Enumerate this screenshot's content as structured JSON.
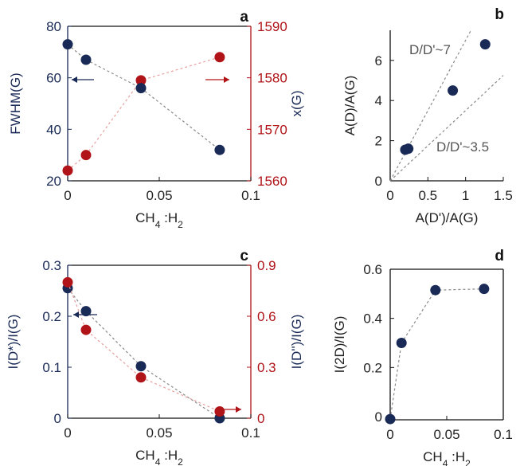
{
  "colors": {
    "navy": "#1a2a57",
    "red": "#b01418",
    "axis_left": "#1a2a57",
    "axis_right": "#b01418",
    "black": "#000000",
    "dash_light_red": "#e8a0a0",
    "dash_gray": "#888888"
  },
  "chart_data": [
    {
      "panel": "a",
      "type": "scatter",
      "xlabel": "CH4 :H2",
      "ylabel_left": "FWHM(G)",
      "ylabel_right": "x(G)",
      "xlim": [
        0,
        0.1
      ],
      "ylim_left": [
        20,
        80
      ],
      "ylim_right": [
        1560,
        1590
      ],
      "x_ticks": [
        "0",
        "0.05",
        "0.1"
      ],
      "y_ticks_left": [
        "20",
        "40",
        "60",
        "80"
      ],
      "y_ticks_right": [
        "1560",
        "1570",
        "1580",
        "1590"
      ],
      "series": [
        {
          "axis": "left",
          "color": "#1a2a57",
          "x": [
            0,
            0.01,
            0.04,
            0.083
          ],
          "y": [
            73,
            67,
            56,
            32
          ]
        },
        {
          "axis": "right",
          "color": "#b01418",
          "x": [
            0,
            0.01,
            0.04,
            0.083
          ],
          "y": [
            1562,
            1565,
            1579.5,
            1584
          ]
        }
      ]
    },
    {
      "panel": "b",
      "type": "scatter",
      "xlabel": "A(D')/A(G)",
      "ylabel": "A(D)/A(G)",
      "xlim": [
        0,
        1.5
      ],
      "ylim": [
        0,
        7.5
      ],
      "x_ticks": [
        "0",
        "0.5",
        "1",
        "1.5"
      ],
      "y_ticks": [
        "0",
        "2",
        "4",
        "6"
      ],
      "annotations": [
        "D/D'~7",
        "D/D'~3.5"
      ],
      "reference_lines": [
        7,
        3.5
      ],
      "series": [
        {
          "color": "#1a2a57",
          "x": [
            0.2,
            0.24,
            0.83,
            1.26
          ],
          "y": [
            1.55,
            1.6,
            4.5,
            6.8
          ]
        }
      ]
    },
    {
      "panel": "c",
      "type": "scatter",
      "xlabel": "CH4 :H2",
      "ylabel_left": "I(D*)/I(G)",
      "ylabel_right": "I(D'')/I(G)",
      "xlim": [
        0,
        0.1
      ],
      "ylim_left": [
        0,
        0.3
      ],
      "ylim_right": [
        0,
        0.9
      ],
      "x_ticks": [
        "0",
        "0.05",
        "0.1"
      ],
      "y_ticks_left": [
        "0",
        "0.1",
        "0.2",
        "0.3"
      ],
      "y_ticks_right": [
        "0",
        "0.3",
        "0.6",
        "0.9"
      ],
      "series": [
        {
          "axis": "left",
          "color": "#1a2a57",
          "x": [
            0,
            0.01,
            0.04,
            0.083
          ],
          "y": [
            0.255,
            0.21,
            0.102,
            0.0
          ]
        },
        {
          "axis": "right",
          "color": "#b01418",
          "x": [
            0,
            0.01,
            0.04,
            0.083
          ],
          "y": [
            0.8,
            0.52,
            0.24,
            0.04
          ]
        }
      ]
    },
    {
      "panel": "d",
      "type": "scatter",
      "xlabel": "CH4 :H2",
      "ylabel": "I(2D)/I(G)",
      "xlim": [
        0,
        0.1
      ],
      "ylim": [
        0,
        0.6
      ],
      "x_ticks": [
        "0",
        "0.05",
        "0.1"
      ],
      "y_ticks": [
        "0",
        "0.2",
        "0.4",
        "0.6"
      ],
      "series": [
        {
          "color": "#1a2a57",
          "x": [
            0,
            0.01,
            0.04,
            0.083
          ],
          "y": [
            -0.01,
            0.3,
            0.515,
            0.52
          ]
        }
      ]
    }
  ]
}
